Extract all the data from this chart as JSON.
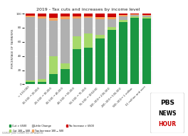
{
  "title": "2019 - Tax cuts and increases by income level",
  "categories": [
    "< $10,000",
    "$10,000-$20,000",
    "$20,000-$30,000",
    "$30,000-$40,000",
    "$40,000-$50,000",
    "$50,000-$75,000",
    "$75,000-$100,000",
    "$100,000-$200,000",
    "$200,000-$500,000",
    "$500,000-$1 million",
    "$1 million and over"
  ],
  "series": {
    "cut_over_500": [
      3,
      3,
      15,
      22,
      50,
      52,
      65,
      77,
      88,
      94,
      93
    ],
    "cut_100_500": [
      2,
      4,
      25,
      8,
      18,
      20,
      5,
      4,
      3,
      2,
      2
    ],
    "little_change": [
      90,
      86,
      50,
      62,
      25,
      22,
      22,
      11,
      5,
      2,
      2
    ],
    "tax_inc_100_500": [
      2,
      3,
      4,
      4,
      3,
      2,
      3,
      3,
      2,
      1,
      1
    ],
    "tax_inc_over_500": [
      3,
      4,
      6,
      4,
      4,
      4,
      5,
      5,
      2,
      1,
      2
    ]
  },
  "colors": {
    "cut_over_500": "#1a9641",
    "cut_100_500": "#a6d96a",
    "little_change": "#b0b0b0",
    "tax_inc_100_500": "#f4a460",
    "tax_inc_over_500": "#cc0000"
  },
  "ylabel": "PERCENTAGE OF TAXPAYERS",
  "ylim": [
    0,
    100
  ],
  "yticks": [
    0,
    20,
    40,
    60,
    80,
    100
  ],
  "legend": [
    {
      "label": "Cut > $500",
      "color": "#1a9641"
    },
    {
      "label": "Cut $100-$500",
      "color": "#a6d96a"
    },
    {
      "label": "Little Change",
      "color": "#b0b0b0"
    },
    {
      "label": "Tax Increase $100-$500",
      "color": "#f4a460"
    },
    {
      "label": "Tax Increase > $500",
      "color": "#cc0000"
    }
  ],
  "source": "SOURCE: JOINT COMMITTEE ON TAXATION",
  "bg_color": "#f5f5f5"
}
